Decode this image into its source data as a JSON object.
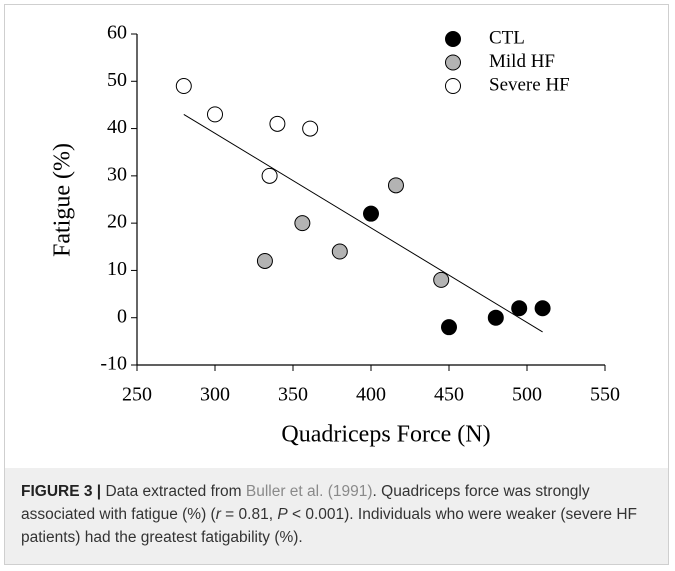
{
  "chart_data": {
    "type": "scatter",
    "xlabel": "Quadriceps Force (N)",
    "ylabel": "Fatigue (%)",
    "xlim": [
      250,
      550
    ],
    "xticks": [
      250,
      300,
      350,
      400,
      450,
      500,
      550
    ],
    "ylim": [
      -10,
      60
    ],
    "yticks": [
      -10,
      0,
      10,
      20,
      30,
      40,
      50,
      60
    ],
    "grid": false,
    "legend": "upper right",
    "series": [
      {
        "name": "CTL",
        "color": "#000000",
        "x": [
          400,
          450,
          480,
          495,
          510
        ],
        "values": [
          22,
          -2,
          0,
          2,
          2
        ]
      },
      {
        "name": "Mild HF",
        "color": "#b3b3b3",
        "x": [
          332,
          356,
          380,
          416,
          445
        ],
        "values": [
          12,
          20,
          14,
          28,
          8
        ]
      },
      {
        "name": "Severe HF",
        "color": "#ffffff",
        "x": [
          280,
          300,
          340,
          361,
          335
        ],
        "values": [
          49,
          43,
          41,
          40,
          30
        ]
      }
    ],
    "trend_line": {
      "x": [
        280,
        510
      ],
      "values": [
        43,
        -3
      ]
    }
  },
  "caption": {
    "label": "FIGURE 3 |",
    "parts": [
      "Data extracted from ",
      "Buller et al. (1991)",
      ". Quadriceps force was strongly associated with fatigue (%) (",
      "r",
      " = 0.81, ",
      "P",
      " < 0.001). Individuals who were weaker (severe HF patients) had the greatest fatigability (%)."
    ]
  }
}
